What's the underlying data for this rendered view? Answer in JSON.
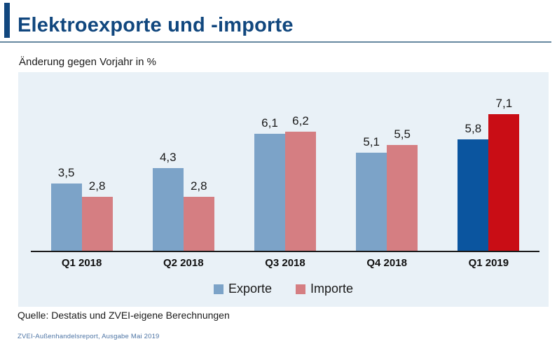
{
  "slide": {
    "title": "Elektroexporte und -importe",
    "subtitle": "Änderung gegen Vorjahr in %",
    "source": "Quelle: Destatis und ZVEI-eigene Berechnungen",
    "footer": "ZVEI-Außenhandelsreport,   Ausgabe  Mai 2019"
  },
  "colors": {
    "title_blue": "#11477e",
    "plot_background": "#e9f1f7",
    "export_blue": "#7ca3c8",
    "import_red": "#d57e82",
    "export_blue_highlight": "#0b559f",
    "import_red_highlight": "#c90d15",
    "footer_blue": "#4d74a4",
    "axis_black": "#1a1a1a"
  },
  "chart_data": {
    "type": "bar",
    "title": "Elektroexporte und -importe",
    "ylabel_note": "Änderung gegen Vorjahr in %",
    "categories": [
      "Q1 2018",
      "Q2 2018",
      "Q3 2018",
      "Q4 2018",
      "Q1 2019"
    ],
    "series": [
      {
        "name": "Exporte",
        "values": [
          3.5,
          4.3,
          6.1,
          5.1,
          5.8
        ],
        "colors": [
          "#7ca3c8",
          "#7ca3c8",
          "#7ca3c8",
          "#7ca3c8",
          "#0b559f"
        ]
      },
      {
        "name": "Importe",
        "values": [
          2.8,
          2.8,
          6.2,
          5.5,
          7.1
        ],
        "colors": [
          "#d57e82",
          "#d57e82",
          "#d57e82",
          "#d57e82",
          "#c90d15"
        ]
      }
    ],
    "value_labels": [
      [
        "3,5",
        "4,3",
        "6,1",
        "5,1",
        "5,8"
      ],
      [
        "2,8",
        "2,8",
        "6,2",
        "5,5",
        "7,1"
      ]
    ],
    "legend": [
      {
        "label": "Exporte",
        "color": "#7ca3c8"
      },
      {
        "label": "Importe",
        "color": "#d57e82"
      }
    ],
    "ylim": [
      0,
      9.3
    ],
    "grid": false,
    "legend_position": "bottom-center",
    "highlighted_category": "Q1 2019"
  }
}
